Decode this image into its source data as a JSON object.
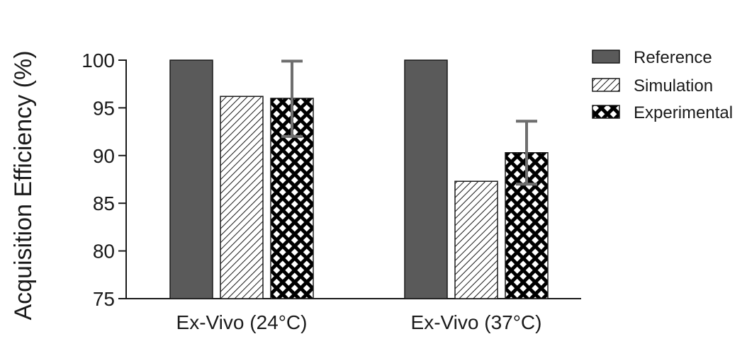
{
  "chart_data": {
    "type": "bar",
    "title": "",
    "xlabel": "",
    "ylabel": "Acquisition Efficiency (%)",
    "ylim": [
      75,
      100
    ],
    "yticks": [
      75,
      80,
      85,
      90,
      95,
      100
    ],
    "grid": false,
    "legend_position": "top-right",
    "categories": [
      "Ex-Vivo (24°C)",
      "Ex-Vivo (37°C)"
    ],
    "series": [
      {
        "name": "Reference",
        "values": [
          100,
          100
        ],
        "fill": "solid",
        "color": "#5a5a5a"
      },
      {
        "name": "Simulation",
        "values": [
          96.2,
          87.3
        ],
        "fill": "diagonal-hatch",
        "color": "#1a1a1a"
      },
      {
        "name": "Experimental",
        "values": [
          96.0,
          90.3
        ],
        "fill": "crosshatch",
        "color": "#000000",
        "error": [
          [
            92.0,
            99.9
          ],
          [
            87.0,
            93.6
          ]
        ]
      }
    ],
    "error_bar_color": "#6e6e6e"
  }
}
